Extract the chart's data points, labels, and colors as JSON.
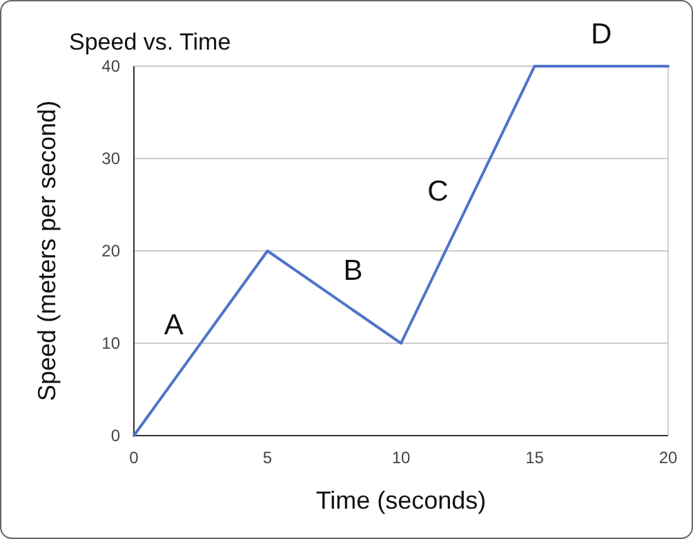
{
  "chart_data": {
    "type": "line",
    "title": "Speed vs. Time",
    "xlabel": "Time (seconds)",
    "ylabel": "Speed (meters per second)",
    "x": [
      0,
      5,
      10,
      15,
      20
    ],
    "series": [
      {
        "color": "#4f74c8",
        "values": [
          0,
          20,
          10,
          40,
          40
        ]
      }
    ],
    "xlim": [
      0,
      20
    ],
    "xticks": [
      0,
      5,
      10,
      15,
      20
    ],
    "ylim": [
      0,
      40
    ],
    "yticks": [
      0,
      10,
      20,
      30,
      40
    ],
    "grid": "y",
    "marker": "none",
    "line_style": "solid",
    "annotations": [
      "A",
      "B",
      "C",
      "D"
    ]
  }
}
